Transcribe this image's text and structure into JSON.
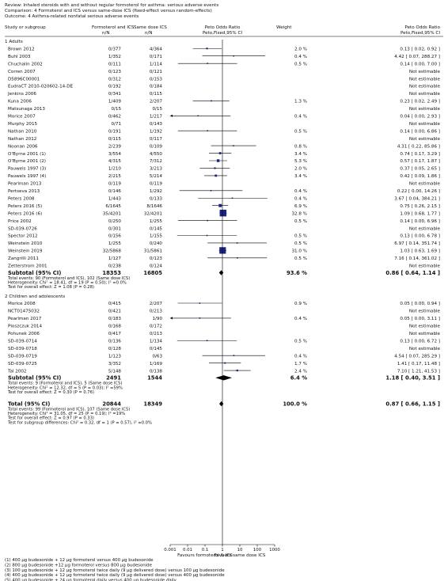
{
  "header": {
    "review": "Review:  Inhaled steroids with and without regular formoterol for asthma: serious adverse events",
    "comparison": "Comparison:  4 Formoterol and ICS versus same-dose ICS (fixed-effect versus random-effects)",
    "outcome": "Outcome:  4 Asthma-related nonfatal serious adverse events"
  },
  "columns": {
    "study": "Study or subgroup",
    "exp": "Formoterol and ICS",
    "ctrl": "Same dose ICS",
    "n_over_n": "n/N",
    "or": "Peto Odds Ratio",
    "or_method": "Peto,Fixed,95% CI",
    "weight": "Weight",
    "or2": "Peto Odds Ratio",
    "or2_method": "Peto,Fixed,95% CI"
  },
  "not_estimable": "Not estimable",
  "chart_data": {
    "type": "forest",
    "x_scale": "log",
    "x_ticks": [
      "0.001",
      "0.01",
      "0.1",
      "1",
      "10",
      "100",
      "1000"
    ],
    "x_range": [
      0.001,
      1000
    ],
    "left_label": "Favours formoterol & ICS",
    "right_label": "Favours same dose ICS",
    "groups": [
      {
        "title": "1 Adults",
        "studies": [
          {
            "name": "Brown 2012",
            "exp": "0/377",
            "ctrl": "4/364",
            "weight": "2.0 %",
            "ci": "0.13 [ 0.02, 0.92 ]",
            "or": 0.13,
            "lo": 0.02,
            "hi": 0.92
          },
          {
            "name": "Buhl 2003",
            "exp": "1/352",
            "ctrl": "0/171",
            "weight": "0.4 %",
            "ci": "4.42 [ 0.07, 288.27 ]",
            "or": 4.42,
            "lo": 0.07,
            "hi": 288.27
          },
          {
            "name": "Chuchalin 2002",
            "exp": "0/111",
            "ctrl": "1/114",
            "weight": "0.5 %",
            "ci": "0.14 [ 0.00, 7.00 ]",
            "or": 0.14,
            "lo": 0.0028,
            "hi": 7.0
          },
          {
            "name": "Corren 2007",
            "exp": "0/123",
            "ctrl": "0/121",
            "weight": "",
            "ci": "Not estimable"
          },
          {
            "name": "D5896C00001",
            "exp": "0/312",
            "ctrl": "0/153",
            "weight": "",
            "ci": "Not estimable"
          },
          {
            "name": "EudraCT 2010-020602-14-DE",
            "exp": "0/192",
            "ctrl": "0/184",
            "weight": "",
            "ci": "Not estimable"
          },
          {
            "name": "Jenkins 2006",
            "exp": "0/341",
            "ctrl": "0/115",
            "weight": "",
            "ci": "Not estimable"
          },
          {
            "name": "Kuna 2006",
            "exp": "1/409",
            "ctrl": "2/207",
            "weight": "1.3 %",
            "ci": "0.23 [ 0.02, 2.49 ]",
            "or": 0.23,
            "lo": 0.02,
            "hi": 2.49
          },
          {
            "name": "Matsunaga 2013",
            "exp": "0/15",
            "ctrl": "0/15",
            "weight": "",
            "ci": "Not estimable"
          },
          {
            "name": "Morice 2007",
            "exp": "0/462",
            "ctrl": "1/217",
            "weight": "0.4 %",
            "ci": "0.04 [ 0.00, 2.93 ]",
            "or": 0.04,
            "lo": 0.0006,
            "hi": 2.93
          },
          {
            "name": "Murphy 2015",
            "exp": "0/71",
            "ctrl": "0/143",
            "weight": "",
            "ci": "Not estimable"
          },
          {
            "name": "Nathan 2010",
            "exp": "0/191",
            "ctrl": "1/192",
            "weight": "0.5 %",
            "ci": "0.14 [ 0.00, 6.86 ]",
            "or": 0.14,
            "lo": 0.0028,
            "hi": 6.86
          },
          {
            "name": "Nathan 2012",
            "exp": "0/115",
            "ctrl": "0/117",
            "weight": "",
            "ci": "Not estimable"
          },
          {
            "name": "Noonan 2006",
            "exp": "2/239",
            "ctrl": "0/109",
            "weight": "0.8 %",
            "ci": "4.31 [ 0.22, 85.86 ]",
            "or": 4.31,
            "lo": 0.22,
            "hi": 85.86
          },
          {
            "name": "O'Byrne 2001 (1)",
            "exp": "3/554",
            "ctrl": "4/550",
            "weight": "3.4 %",
            "ci": "0.74 [ 0.17, 3.29 ]",
            "or": 0.74,
            "lo": 0.17,
            "hi": 3.29
          },
          {
            "name": "O'Byrne 2001 (2)",
            "exp": "4/315",
            "ctrl": "7/312",
            "weight": "5.3 %",
            "ci": "0.57 [ 0.17, 1.87 ]",
            "or": 0.57,
            "lo": 0.17,
            "hi": 1.87
          },
          {
            "name": "Pauwels 1997 (3)",
            "exp": "1/210",
            "ctrl": "3/213",
            "weight": "2.0 %",
            "ci": "0.37 [ 0.05, 2.65 ]",
            "or": 0.37,
            "lo": 0.05,
            "hi": 2.65
          },
          {
            "name": "Pauwels 1997 (4)",
            "exp": "2/215",
            "ctrl": "5/214",
            "weight": "3.4 %",
            "ci": "0.42 [ 0.09, 1.86 ]",
            "or": 0.42,
            "lo": 0.09,
            "hi": 1.86
          },
          {
            "name": "Pearlman 2013",
            "exp": "0/119",
            "ctrl": "0/119",
            "weight": "",
            "ci": "Not estimable"
          },
          {
            "name": "Pertseva 2013",
            "exp": "0/146",
            "ctrl": "1/292",
            "weight": "0.4 %",
            "ci": "0.22 [ 0.00, 14.26 ]",
            "or": 0.22,
            "lo": 0.0034,
            "hi": 14.26
          },
          {
            "name": "Peters 2008",
            "exp": "1/443",
            "ctrl": "0/133",
            "weight": "0.4 %",
            "ci": "3.67 [ 0.04, 384.21 ]",
            "or": 3.67,
            "lo": 0.04,
            "hi": 384.21
          },
          {
            "name": "Peters 2016 (5)",
            "exp": "6/1645",
            "ctrl": "8/1646",
            "weight": "6.9 %",
            "ci": "0.75 [ 0.26, 2.15 ]",
            "or": 0.75,
            "lo": 0.26,
            "hi": 2.15
          },
          {
            "name": "Peters 2016 (6)",
            "exp": "35/4201",
            "ctrl": "32/4201",
            "weight": "32.8 %",
            "ci": "1.09 [ 0.68, 1.77 ]",
            "or": 1.09,
            "lo": 0.68,
            "hi": 1.77
          },
          {
            "name": "Price 2002",
            "exp": "0/250",
            "ctrl": "1/255",
            "weight": "0.5 %",
            "ci": "0.14 [ 0.00, 6.96 ]",
            "or": 0.14,
            "lo": 0.0028,
            "hi": 6.96
          },
          {
            "name": "SD-039-0726",
            "exp": "0/301",
            "ctrl": "0/145",
            "weight": "",
            "ci": "Not estimable"
          },
          {
            "name": "Spector 2012",
            "exp": "0/156",
            "ctrl": "1/155",
            "weight": "0.5 %",
            "ci": "0.13 [ 0.00, 6.78 ]",
            "or": 0.13,
            "lo": 0.0025,
            "hi": 6.78
          },
          {
            "name": "Weinstein 2010",
            "exp": "1/255",
            "ctrl": "0/240",
            "weight": "0.5 %",
            "ci": "6.97 [ 0.14, 351.74 ]",
            "or": 6.97,
            "lo": 0.14,
            "hi": 351.74
          },
          {
            "name": "Weinstein 2019",
            "exp": "32/5868",
            "ctrl": "31/5861",
            "weight": "31.0 %",
            "ci": "1.03 [ 0.63, 1.69 ]",
            "or": 1.03,
            "lo": 0.63,
            "hi": 1.69
          },
          {
            "name": "Zangrilli 2011",
            "exp": "1/127",
            "ctrl": "0/123",
            "weight": "0.5 %",
            "ci": "7.16 [ 0.14, 361.02 ]",
            "or": 7.16,
            "lo": 0.14,
            "hi": 361.02
          },
          {
            "name": "Zetterstrom 2001",
            "exp": "0/238",
            "ctrl": "0/124",
            "weight": "",
            "ci": "Not estimable"
          }
        ],
        "subtotal": {
          "label": "Subtotal (95% CI)",
          "exp": "18353",
          "ctrl": "16805",
          "weight": "93.6 %",
          "ci": "0.86 [ 0.64, 1.14 ]",
          "or": 0.86,
          "lo": 0.64,
          "hi": 1.14
        },
        "notes": [
          "Total events: 90 (Formoterol and ICS), 102 (Same dose ICS)",
          "Heterogeneity: Chi² = 18.41, df = 19 (P = 0.50); I² =0.0%",
          "Test for overall effect: Z = 1.08 (P = 0.28)"
        ]
      },
      {
        "title": "2 Children and adolescents",
        "studies": [
          {
            "name": "Morice 2008",
            "exp": "0/415",
            "ctrl": "2/207",
            "weight": "0.9 %",
            "ci": "0.05 [ 0.00, 0.94 ]",
            "or": 0.05,
            "lo": 0.0027,
            "hi": 0.94
          },
          {
            "name": "NCT01475032",
            "exp": "0/421",
            "ctrl": "0/213",
            "weight": "",
            "ci": "Not estimable"
          },
          {
            "name": "Pearlman 2017",
            "exp": "0/183",
            "ctrl": "1/90",
            "weight": "0.4 %",
            "ci": "0.05 [ 0.00, 3.11 ]",
            "or": 0.05,
            "lo": 0.0008,
            "hi": 3.11
          },
          {
            "name": "Ploszczuk 2014",
            "exp": "0/168",
            "ctrl": "0/172",
            "weight": "",
            "ci": "Not estimable"
          },
          {
            "name": "Pohunek 2006",
            "exp": "0/417",
            "ctrl": "0/213",
            "weight": "",
            "ci": "Not estimable"
          },
          {
            "name": "SD-039-0714",
            "exp": "0/136",
            "ctrl": "1/134",
            "weight": "0.5 %",
            "ci": "0.13 [ 0.00, 6.72 ]",
            "or": 0.13,
            "lo": 0.0025,
            "hi": 6.72
          },
          {
            "name": "SD-039-0718",
            "exp": "0/128",
            "ctrl": "0/145",
            "weight": "",
            "ci": "Not estimable"
          },
          {
            "name": "SD-039-0719",
            "exp": "1/123",
            "ctrl": "0/63",
            "weight": "0.4 %",
            "ci": "4.54 [ 0.07, 285.29 ]",
            "or": 4.54,
            "lo": 0.07,
            "hi": 285.29
          },
          {
            "name": "SD-039-0725",
            "exp": "3/352",
            "ctrl": "1/169",
            "weight": "1.7 %",
            "ci": "1.41 [ 0.17, 11.48 ]",
            "or": 1.41,
            "lo": 0.17,
            "hi": 11.48
          },
          {
            "name": "Tal 2002",
            "exp": "5/148",
            "ctrl": "0/138",
            "weight": "2.4 %",
            "ci": "7.10 [ 1.21, 41.53 ]",
            "or": 7.1,
            "lo": 1.21,
            "hi": 41.53
          }
        ],
        "subtotal": {
          "label": "Subtotal (95% CI)",
          "exp": "2491",
          "ctrl": "1544",
          "weight": "6.4 %",
          "ci": "1.18 [ 0.40, 3.51 ]",
          "or": 1.18,
          "lo": 0.4,
          "hi": 3.51
        },
        "notes": [
          "Total events: 9 (Formoterol and ICS), 5 (Same dose ICS)",
          "Heterogeneity: Chi² = 12.32, df = 5 (P = 0.03); I² =59%",
          "Test for overall effect: Z = 0.30 (P = 0.76)"
        ]
      }
    ],
    "total": {
      "label": "Total (95% CI)",
      "exp": "20844",
      "ctrl": "18349",
      "weight": "100.0 %",
      "ci": "0.87 [ 0.66, 1.15 ]",
      "or": 0.87,
      "lo": 0.66,
      "hi": 1.15
    },
    "total_notes": [
      "Total events: 99 (Formoterol and ICS), 107 (Same dose ICS)",
      "Heterogeneity: Chi² = 31.05, df = 25 (P = 0.19); I² =19%",
      "Test for overall effect: Z = 0.97 (P = 0.33)",
      "Test for subgroup differences: Chi² = 0.32, df = 1 (P = 0.57), I² =0.0%"
    ]
  },
  "footnotes": [
    "(1) 400 µg budesonide + 12 µg formoterol versus 400 µg budesonide",
    "(2) 800 µg budesonide +12 µg formoterol versus 800 µg budesonide",
    "(3) 100 µg budesonide + 12 µg formoterol twice daily (9 µg delivered dose) versus 100 µg budesonide",
    "(4) 400 µg budesonide + 12 µg formoterol twice daily (9 µg delivered dose) versus 400 µg budesonide",
    "(5) 400 µg budesonide + 24 µg formoterol daily versus 400 µg budesonide daily",
    "(6) 800 µg budesonide + 24 µg formoterol daily versus 800 µg budesonide daily"
  ],
  "colors": {
    "marker": "#1a237e",
    "text": "#111111",
    "line": "#000000"
  }
}
